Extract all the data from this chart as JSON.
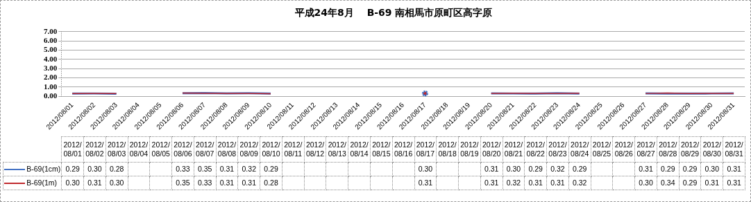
{
  "chart_data": {
    "type": "line",
    "title": "平成24年8月　 B-69 南相馬市原町区高字原",
    "categories": [
      "2012/08/01",
      "2012/08/02",
      "2012/08/03",
      "2012/08/04",
      "2012/08/05",
      "2012/08/06",
      "2012/08/07",
      "2012/08/08",
      "2012/08/09",
      "2012/08/10",
      "2012/08/11",
      "2012/08/12",
      "2012/08/13",
      "2012/08/14",
      "2012/08/15",
      "2012/08/16",
      "2012/08/17",
      "2012/08/18",
      "2012/08/19",
      "2012/08/20",
      "2012/08/21",
      "2012/08/22",
      "2012/08/23",
      "2012/08/24",
      "2012/08/25",
      "2012/08/26",
      "2012/08/27",
      "2012/08/28",
      "2012/08/29",
      "2012/08/30",
      "2012/08/31"
    ],
    "series": [
      {
        "name": "B-69(1cm)",
        "color": "#4472c4",
        "values": [
          0.29,
          0.3,
          0.28,
          null,
          null,
          0.33,
          0.35,
          0.31,
          0.32,
          0.29,
          null,
          null,
          null,
          null,
          null,
          null,
          0.3,
          null,
          null,
          0.31,
          0.3,
          0.29,
          0.32,
          0.29,
          null,
          null,
          0.31,
          0.29,
          0.29,
          0.3,
          0.31
        ],
        "value_labels": [
          "0.29",
          "0.30",
          "0.28",
          null,
          null,
          "0.33",
          "0.35",
          "0.31",
          "0.32",
          "0.29",
          null,
          null,
          null,
          null,
          null,
          null,
          "0.30",
          null,
          null,
          "0.31",
          "0.30",
          "0.29",
          "0.32",
          "0.29",
          null,
          null,
          "0.31",
          "0.29",
          "0.29",
          "0.30",
          "0.31"
        ]
      },
      {
        "name": "B-69(1m)",
        "color": "#c0282d",
        "values": [
          0.3,
          0.31,
          0.3,
          null,
          null,
          0.35,
          0.33,
          0.31,
          0.31,
          0.28,
          null,
          null,
          null,
          null,
          null,
          null,
          0.31,
          null,
          null,
          0.31,
          0.32,
          0.31,
          0.31,
          0.32,
          null,
          null,
          0.3,
          0.34,
          0.29,
          0.31,
          0.31
        ],
        "value_labels": [
          "0.30",
          "0.31",
          "0.30",
          null,
          null,
          "0.35",
          "0.33",
          "0.31",
          "0.31",
          "0.28",
          null,
          null,
          null,
          null,
          null,
          null,
          "0.31",
          null,
          null,
          "0.31",
          "0.32",
          "0.31",
          "0.31",
          "0.32",
          null,
          null,
          "0.30",
          "0.34",
          "0.29",
          "0.31",
          "0.31"
        ]
      }
    ],
    "ylim": [
      0,
      7
    ],
    "yticks": [
      {
        "value": 0,
        "label": "0.00"
      },
      {
        "value": 1,
        "label": "1.00"
      },
      {
        "value": 2,
        "label": "2.00"
      },
      {
        "value": 3,
        "label": "3.00"
      },
      {
        "value": 4,
        "label": "4.00"
      },
      {
        "value": 5,
        "label": "5.00"
      },
      {
        "value": 6,
        "label": "6.00"
      },
      {
        "value": 7,
        "label": "7.00"
      }
    ],
    "grid": "y",
    "legend": "bottom",
    "marker": "none"
  }
}
